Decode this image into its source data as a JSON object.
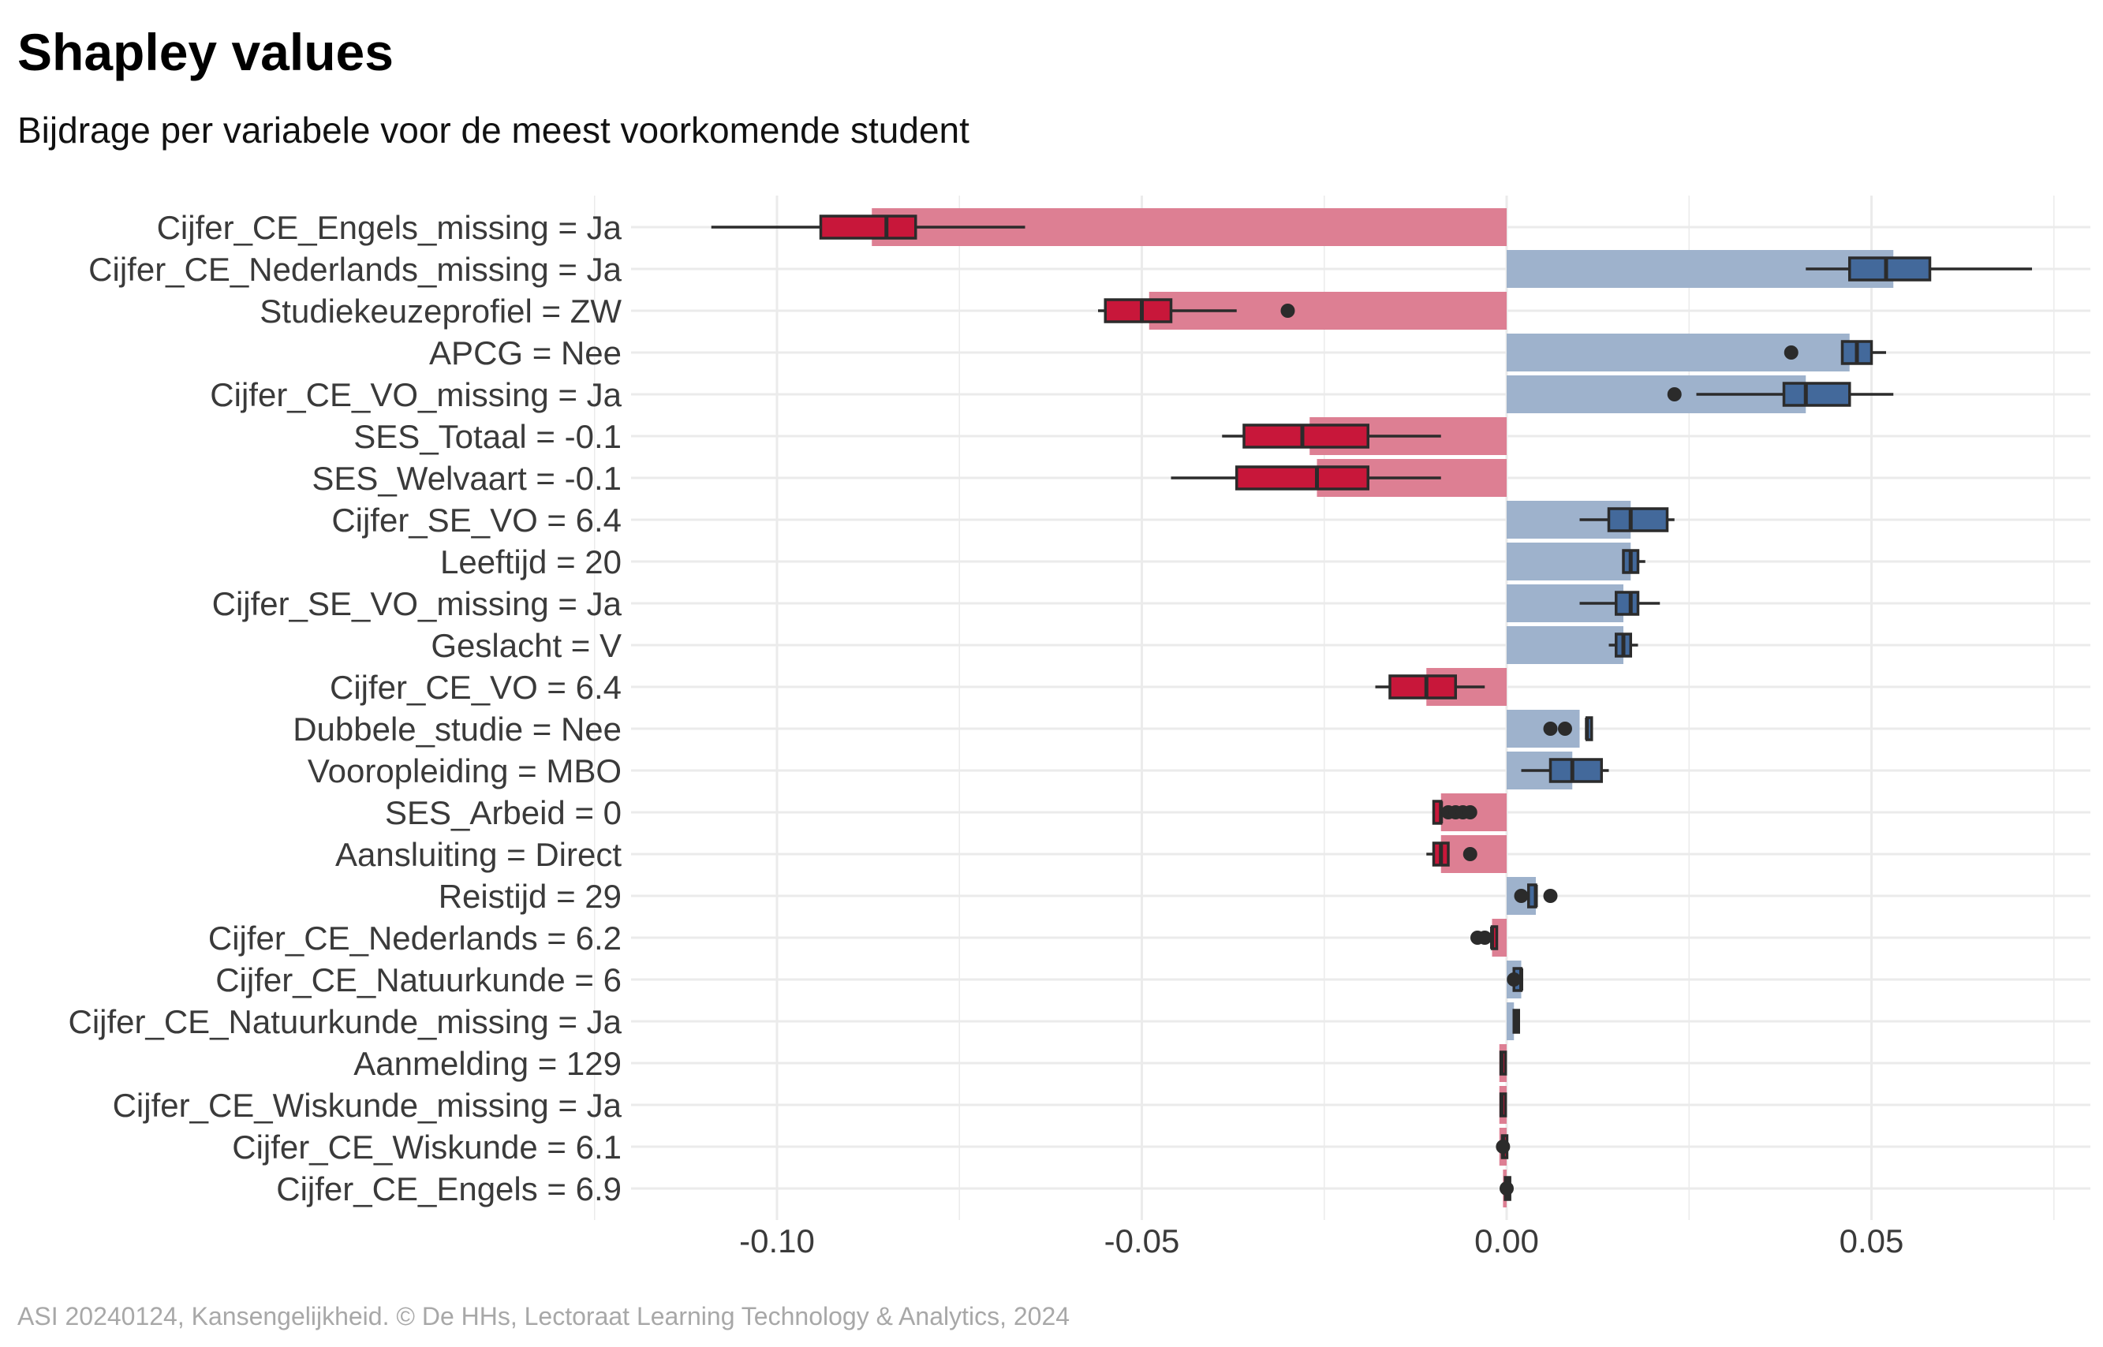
{
  "title": "Shapley values",
  "subtitle": "Bijdrage per variabele voor de meest voorkomende student",
  "caption": "ASI 20240124, Kansengelijkheid. © De HHs, Lectoraat Learning Technology & Analytics, 2024",
  "colors": {
    "negative_bar": "#dd7f93",
    "negative_box": "#c8173a",
    "positive_bar": "#9eb2cc",
    "positive_box": "#43699b",
    "outline": "#2b2b2b",
    "grid": "#ebebeb"
  },
  "chart_data": {
    "type": "bar",
    "orientation": "horizontal",
    "xlim": [
      -0.12,
      0.08
    ],
    "xticks": [
      -0.1,
      -0.05,
      0.0,
      0.05
    ],
    "xtick_labels": [
      "-0.10",
      "-0.05",
      "0.00",
      "0.05"
    ],
    "grid": true,
    "legend": "none",
    "categories": [
      "Cijfer_CE_Engels_missing = Ja",
      "Cijfer_CE_Nederlands_missing = Ja",
      "Studiekeuzeprofiel = ZW",
      "APCG = Nee",
      "Cijfer_CE_VO_missing = Ja",
      "SES_Totaal = -0.1",
      "SES_Welvaart = -0.1",
      "Cijfer_SE_VO = 6.4",
      "Leeftijd = 20",
      "Cijfer_SE_VO_missing = Ja",
      "Geslacht = V",
      "Cijfer_CE_VO = 6.4",
      "Dubbele_studie = Nee",
      "Vooropleiding = MBO",
      "SES_Arbeid = 0",
      "Aansluiting = Direct",
      "Reistijd = 29",
      "Cijfer_CE_Nederlands = 6.2",
      "Cijfer_CE_Natuurkunde = 6",
      "Cijfer_CE_Natuurkunde_missing = Ja",
      "Aanmelding = 129",
      "Cijfer_CE_Wiskunde_missing = Ja",
      "Cijfer_CE_Wiskunde = 6.1",
      "Cijfer_CE_Engels = 6.9"
    ],
    "values": [
      -0.087,
      0.053,
      -0.049,
      0.047,
      0.041,
      -0.027,
      -0.026,
      0.017,
      0.017,
      0.016,
      0.016,
      -0.011,
      0.01,
      0.009,
      -0.009,
      -0.009,
      0.004,
      -0.002,
      0.002,
      0.001,
      -0.001,
      -0.001,
      -0.001,
      -0.0005
    ],
    "boxplots": [
      {
        "min": -0.109,
        "q1": -0.094,
        "median": -0.085,
        "q3": -0.081,
        "max": -0.066,
        "outliers": []
      },
      {
        "min": 0.041,
        "q1": 0.047,
        "median": 0.052,
        "q3": 0.058,
        "max": 0.072,
        "outliers": []
      },
      {
        "min": -0.056,
        "q1": -0.055,
        "median": -0.05,
        "q3": -0.046,
        "max": -0.037,
        "outliers": [
          -0.03
        ]
      },
      {
        "min": 0.046,
        "q1": 0.046,
        "median": 0.048,
        "q3": 0.05,
        "max": 0.052,
        "outliers": [
          0.039
        ]
      },
      {
        "min": 0.026,
        "q1": 0.038,
        "median": 0.041,
        "q3": 0.047,
        "max": 0.053,
        "outliers": [
          0.023
        ]
      },
      {
        "min": -0.039,
        "q1": -0.036,
        "median": -0.028,
        "q3": -0.019,
        "max": -0.009,
        "outliers": []
      },
      {
        "min": -0.046,
        "q1": -0.037,
        "median": -0.026,
        "q3": -0.019,
        "max": -0.009,
        "outliers": []
      },
      {
        "min": 0.01,
        "q1": 0.014,
        "median": 0.017,
        "q3": 0.022,
        "max": 0.023,
        "outliers": []
      },
      {
        "min": 0.016,
        "q1": 0.016,
        "median": 0.017,
        "q3": 0.018,
        "max": 0.019,
        "outliers": []
      },
      {
        "min": 0.01,
        "q1": 0.015,
        "median": 0.017,
        "q3": 0.018,
        "max": 0.021,
        "outliers": []
      },
      {
        "min": 0.014,
        "q1": 0.015,
        "median": 0.016,
        "q3": 0.017,
        "max": 0.018,
        "outliers": []
      },
      {
        "min": -0.018,
        "q1": -0.016,
        "median": -0.011,
        "q3": -0.007,
        "max": -0.003,
        "outliers": []
      },
      {
        "min": 0.011,
        "q1": 0.011,
        "median": 0.011,
        "q3": 0.011,
        "max": 0.011,
        "outliers": [
          0.006,
          0.008
        ]
      },
      {
        "min": 0.002,
        "q1": 0.006,
        "median": 0.009,
        "q3": 0.013,
        "max": 0.014,
        "outliers": []
      },
      {
        "min": -0.01,
        "q1": -0.01,
        "median": -0.009,
        "q3": -0.009,
        "max": -0.009,
        "outliers": [
          -0.008,
          -0.007,
          -0.006,
          -0.005
        ]
      },
      {
        "min": -0.011,
        "q1": -0.01,
        "median": -0.009,
        "q3": -0.008,
        "max": -0.008,
        "outliers": [
          -0.005
        ]
      },
      {
        "min": 0.003,
        "q1": 0.003,
        "median": 0.004,
        "q3": 0.004,
        "max": 0.004,
        "outliers": [
          0.002,
          0.006
        ]
      },
      {
        "min": -0.002,
        "q1": -0.002,
        "median": -0.002,
        "q3": -0.002,
        "max": -0.002,
        "outliers": [
          -0.004,
          -0.003
        ]
      },
      {
        "min": 0.001,
        "q1": 0.001,
        "median": 0.002,
        "q3": 0.002,
        "max": 0.002,
        "outliers": [
          0.001
        ]
      },
      {
        "min": 0.001,
        "q1": 0.001,
        "median": 0.0013,
        "q3": 0.0015,
        "max": 0.0015,
        "outliers": []
      },
      {
        "min": -0.0008,
        "q1": -0.0008,
        "median": -0.0007,
        "q3": -0.0006,
        "max": -0.0006,
        "outliers": []
      },
      {
        "min": -0.0008,
        "q1": -0.0008,
        "median": -0.0007,
        "q3": -0.0006,
        "max": -0.0006,
        "outliers": []
      },
      {
        "min": -0.0006,
        "q1": -0.0006,
        "median": -0.0005,
        "q3": -0.0005,
        "max": -0.0005,
        "outliers": [
          -0.0005
        ]
      },
      {
        "min": -0.0002,
        "q1": -0.0002,
        "median": 0.0,
        "q3": 0.0,
        "max": 0.0,
        "outliers": [
          0.0
        ]
      }
    ]
  }
}
